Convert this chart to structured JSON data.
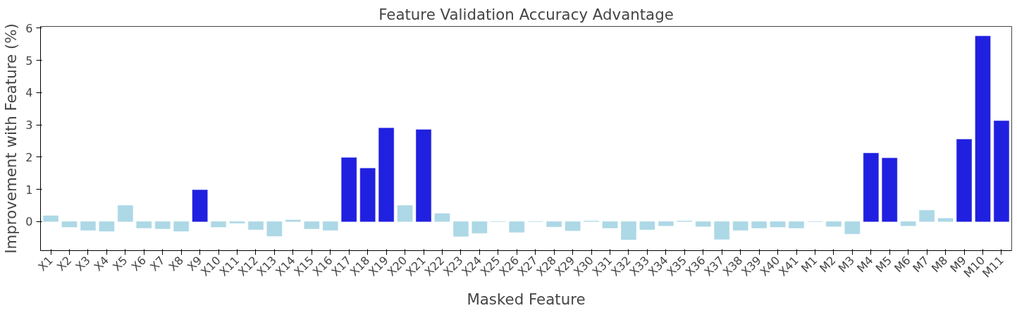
{
  "chart_data": {
    "type": "bar",
    "title": "Feature Validation Accuracy Advantage",
    "xlabel": "Masked Feature",
    "ylabel": "Improvement with Feature (%)",
    "categories": [
      "X1",
      "X2",
      "X3",
      "X4",
      "X5",
      "X6",
      "X7",
      "X8",
      "X9",
      "X10",
      "X11",
      "X12",
      "X13",
      "X14",
      "X15",
      "X16",
      "X17",
      "X18",
      "X19",
      "X20",
      "X21",
      "X22",
      "X23",
      "X24",
      "X25",
      "X26",
      "X27",
      "X28",
      "X29",
      "X30",
      "X31",
      "X32",
      "X33",
      "X34",
      "X35",
      "X36",
      "X37",
      "X38",
      "X39",
      "X40",
      "X41",
      "M1",
      "M2",
      "M3",
      "M4",
      "M5",
      "M6",
      "M7",
      "M8",
      "M9",
      "M10",
      "M11"
    ],
    "values": [
      0.18,
      -0.17,
      -0.27,
      -0.3,
      0.5,
      -0.2,
      -0.22,
      -0.3,
      0.98,
      -0.17,
      -0.05,
      -0.25,
      -0.45,
      0.05,
      -0.22,
      -0.27,
      1.98,
      1.65,
      2.9,
      0.5,
      2.85,
      0.25,
      -0.46,
      -0.36,
      0,
      -0.33,
      0,
      -0.16,
      -0.28,
      0.02,
      -0.2,
      -0.56,
      -0.25,
      -0.13,
      0.02,
      -0.15,
      -0.55,
      -0.27,
      -0.2,
      -0.17,
      -0.2,
      0,
      -0.15,
      -0.38,
      2.12,
      1.97,
      -0.13,
      0.35,
      0.1,
      2.55,
      5.75,
      3.12
    ],
    "colors": [
      "#add8e6",
      "#add8e6",
      "#add8e6",
      "#add8e6",
      "#add8e6",
      "#add8e6",
      "#add8e6",
      "#add8e6",
      "#2020e0",
      "#add8e6",
      "#add8e6",
      "#add8e6",
      "#add8e6",
      "#add8e6",
      "#add8e6",
      "#add8e6",
      "#2020e0",
      "#2020e0",
      "#2020e0",
      "#add8e6",
      "#2020e0",
      "#add8e6",
      "#add8e6",
      "#add8e6",
      "#add8e6",
      "#add8e6",
      "#add8e6",
      "#add8e6",
      "#add8e6",
      "#add8e6",
      "#add8e6",
      "#add8e6",
      "#add8e6",
      "#add8e6",
      "#add8e6",
      "#add8e6",
      "#add8e6",
      "#add8e6",
      "#add8e6",
      "#add8e6",
      "#add8e6",
      "#add8e6",
      "#add8e6",
      "#add8e6",
      "#2020e0",
      "#2020e0",
      "#add8e6",
      "#add8e6",
      "#add8e6",
      "#2020e0",
      "#2020e0",
      "#2020e0"
    ],
    "ylim": [
      -0.9,
      6.05
    ],
    "yticks": [
      0,
      1,
      2,
      3,
      4,
      5,
      6
    ],
    "grid": false
  }
}
